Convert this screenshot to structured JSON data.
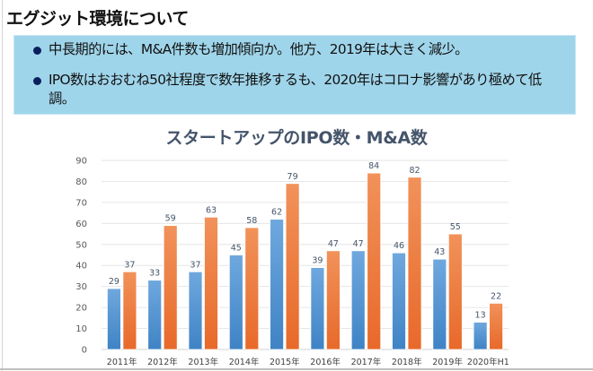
{
  "page": {
    "title": "エグジット環境について"
  },
  "summary": {
    "bullets": [
      "中長期的には、M&A件数も増加傾向か。他方、2019年は大きく減少。",
      "IPO数はおおむね50社程度で数年推移するも、2020年はコロナ影響があり極めて低調。"
    ],
    "bullet_color": "#0b1f5e",
    "background_color": "#9fd5ea"
  },
  "chart_data": {
    "type": "bar",
    "title": "スタートアップのIPO数・M&A数",
    "xlabel": "",
    "ylabel": "",
    "categories": [
      "2011年",
      "2012年",
      "2013年",
      "2014年",
      "2015年",
      "2016年",
      "2017年",
      "2018年",
      "2019年",
      "2020年H1"
    ],
    "series": [
      {
        "name": "IPO数",
        "color": "#5b9bd5",
        "values": [
          29,
          33,
          37,
          45,
          62,
          39,
          47,
          46,
          43,
          13
        ]
      },
      {
        "name": "M&A数",
        "color": "#ed7d31",
        "values": [
          37,
          59,
          63,
          58,
          79,
          47,
          84,
          82,
          55,
          22
        ]
      }
    ],
    "ylim": [
      0,
      90
    ],
    "yticks": [
      0,
      10,
      20,
      30,
      40,
      50,
      60,
      70,
      80,
      90
    ],
    "grid": true,
    "legend": "none",
    "data_labels": true
  }
}
